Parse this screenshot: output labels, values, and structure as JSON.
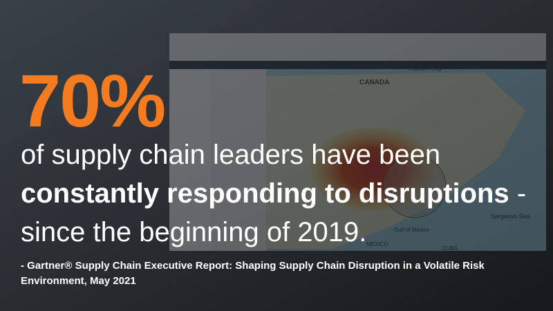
{
  "headline": "70%",
  "statement": {
    "line1": "of supply chain leaders have been",
    "emphasis": "constantly responding to disruptions",
    "dash": "-",
    "line3": "since the beginning of 2019."
  },
  "citation": "- Gartner® Supply Chain Executive Report: Shaping Supply Chain Disruption in a Volatile Risk Environment, May 2021",
  "map_labels": {
    "bay": "Hudson Bay",
    "country": "CANADA",
    "sea": "Sargasso Sea",
    "gulf": "Gulf of Mexico",
    "mexico": "MEXICO",
    "cuba": "CUBA"
  }
}
